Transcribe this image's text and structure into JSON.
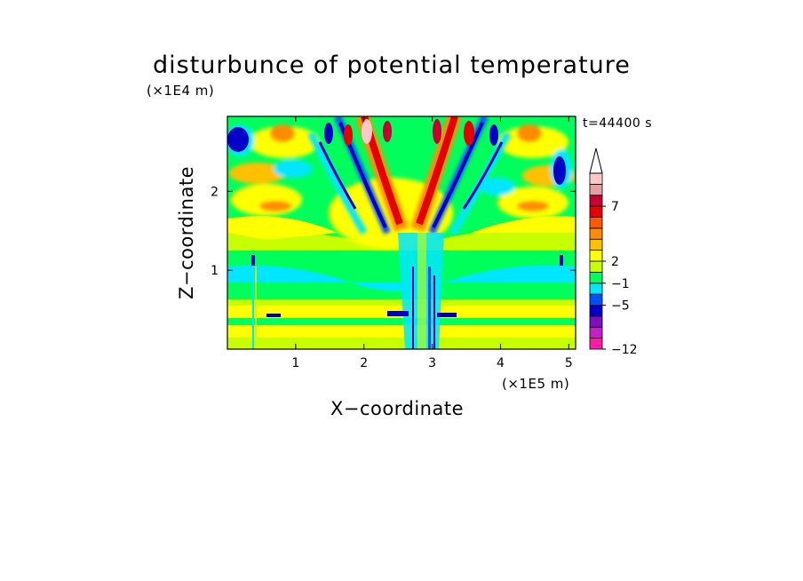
{
  "chart_data": {
    "type": "heatmap",
    "title": "disturbunce of potential temperature",
    "xlabel": "X−coordinate",
    "ylabel": "Z−coordinate",
    "x_unit": "(×1E5 m)",
    "y_unit": "(×1E4 m)",
    "time_label": "t=44400 s",
    "xlim": [
      0.0,
      5.1
    ],
    "ylim": [
      0.0,
      2.95
    ],
    "x_ticks": [
      {
        "value": 1,
        "label": "1"
      },
      {
        "value": 2,
        "label": "2"
      },
      {
        "value": 3,
        "label": "3"
      },
      {
        "value": 4,
        "label": "4"
      },
      {
        "value": 5,
        "label": "5"
      }
    ],
    "y_ticks": [
      {
        "value": 1,
        "label": "1"
      },
      {
        "value": 2,
        "label": "2"
      }
    ],
    "colorbar": {
      "levels": [
        {
          "color": "#ff1aa8"
        },
        {
          "color": "#c81ec8"
        },
        {
          "color": "#7a10c0"
        },
        {
          "color": "#0000c8"
        },
        {
          "color": "#0050ff"
        },
        {
          "color": "#00e6ff"
        },
        {
          "color": "#00ff5a"
        },
        {
          "color": "#c8ff00"
        },
        {
          "color": "#ffff00"
        },
        {
          "color": "#ffc000"
        },
        {
          "color": "#ff8c00"
        },
        {
          "color": "#ff5a00"
        },
        {
          "color": "#e60000"
        },
        {
          "color": "#c80032"
        },
        {
          "color": "#e6a0a0"
        },
        {
          "color": "#ffc8c8"
        }
      ],
      "labels": [
        {
          "value": 7,
          "label": "7",
          "boundary": 13
        },
        {
          "value": 2,
          "label": "2",
          "boundary": 8
        },
        {
          "value": -1,
          "label": "−1",
          "boundary": 6
        },
        {
          "value": -5,
          "label": "−5",
          "boundary": 4
        },
        {
          "value": -12,
          "label": "−12",
          "boundary": 0
        }
      ],
      "extend": "max"
    }
  }
}
